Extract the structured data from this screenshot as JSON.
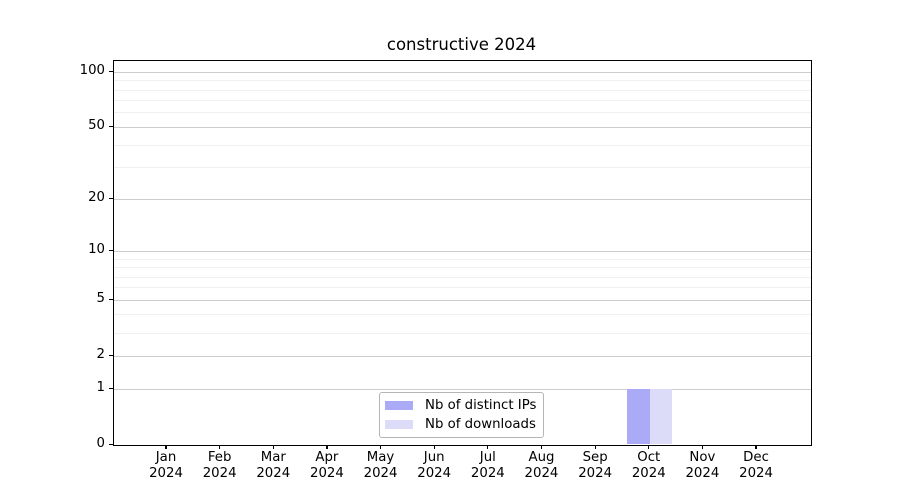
{
  "title": "constructive 2024",
  "chart_data": {
    "type": "bar",
    "title": "constructive 2024",
    "categories": [
      "Jan 2024",
      "Feb 2024",
      "Mar 2024",
      "Apr 2024",
      "May 2024",
      "Jun 2024",
      "Jul 2024",
      "Aug 2024",
      "Sep 2024",
      "Oct 2024",
      "Nov 2024",
      "Dec 2024"
    ],
    "series": [
      {
        "name": "Nb of distinct IPs",
        "color": "#aaaaf7",
        "values": [
          0,
          0,
          0,
          0,
          0,
          0,
          0,
          0,
          0,
          1,
          0,
          0
        ]
      },
      {
        "name": "Nb of downloads",
        "color": "#dcdcf8",
        "values": [
          0,
          0,
          0,
          0,
          0,
          0,
          0,
          0,
          0,
          1,
          0,
          0
        ]
      }
    ],
    "xlabel": "",
    "ylabel": "",
    "yscale": "log1p",
    "ylim": [
      0,
      115
    ],
    "y_major_ticks": [
      0,
      1,
      2,
      5,
      10,
      20,
      50,
      100
    ],
    "y_minor_ticks": [
      3,
      4,
      6,
      7,
      8,
      9,
      30,
      40,
      60,
      70,
      80,
      90
    ],
    "grid": true,
    "legend_position": "lower center"
  },
  "legend": {
    "items": [
      {
        "label": "Nb of distinct IPs",
        "color": "#aaaaf7"
      },
      {
        "label": "Nb of downloads",
        "color": "#dcdcf8"
      }
    ]
  },
  "colors": {
    "major_grid": "#cdcdcd",
    "minor_grid": "#f0f0f0",
    "spine": "#000000",
    "background": "#ffffff"
  }
}
